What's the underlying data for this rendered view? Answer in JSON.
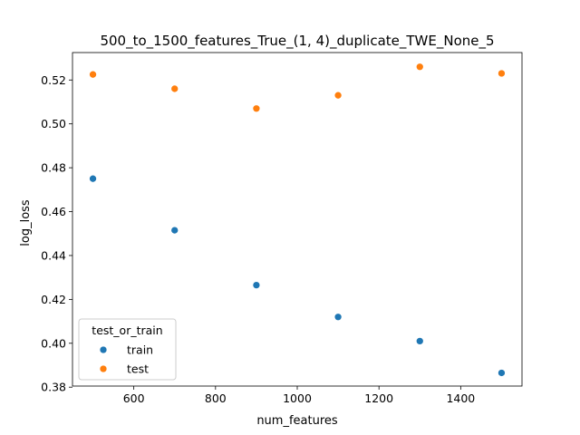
{
  "chart_data": {
    "type": "scatter",
    "title": "500_to_1500_features_True_(1, 4)_duplicate_TWE_None_5",
    "xlabel": "num_features",
    "ylabel": "log_loss",
    "xlim": [
      450,
      1550
    ],
    "ylim": [
      0.3805,
      0.5325
    ],
    "xticks": [
      600,
      800,
      1000,
      1200,
      1400
    ],
    "xtick_labels": [
      "600",
      "800",
      "1000",
      "1200",
      "1400"
    ],
    "yticks": [
      0.38,
      0.4,
      0.42,
      0.44,
      0.46,
      0.48,
      0.5,
      0.52
    ],
    "ytick_labels": [
      "0.38",
      "0.40",
      "0.42",
      "0.44",
      "0.46",
      "0.48",
      "0.50",
      "0.52"
    ],
    "grid": false,
    "legend": {
      "title": "test_or_train",
      "placement": "lower-left"
    },
    "series": [
      {
        "name": "train",
        "color": "#1f77b4",
        "x": [
          500,
          700,
          900,
          1100,
          1300,
          1500
        ],
        "y": [
          0.475,
          0.4515,
          0.4265,
          0.412,
          0.401,
          0.3865
        ]
      },
      {
        "name": "test",
        "color": "#ff7f0e",
        "x": [
          500,
          700,
          900,
          1100,
          1300,
          1500
        ],
        "y": [
          0.5225,
          0.516,
          0.507,
          0.513,
          0.526,
          0.523
        ]
      }
    ]
  }
}
